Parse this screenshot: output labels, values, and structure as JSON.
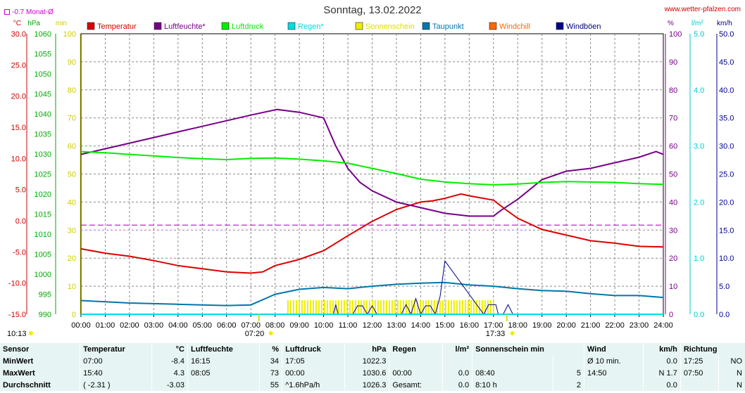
{
  "header": {
    "title": "Sonntag, 13.02.2022",
    "site": "www.wetter-pfalzen.com",
    "avg_label": "-0.7 Monat-Ø"
  },
  "colors": {
    "temperature": "#dd0000",
    "humidity": "#770088",
    "pressure": "#00ee00",
    "rain": "#00dddd",
    "sun": "#eeee00",
    "dewpoint": "#0077aa",
    "windchill": "#ff6600",
    "gust": "#000088"
  },
  "chart_data": {
    "type": "line",
    "title": "Sonntag, 13.02.2022",
    "x_unit": "hours",
    "x_ticks": [
      "00:00",
      "01:00",
      "02:00",
      "03:00",
      "04:00",
      "05:00",
      "06:00",
      "07:00",
      "08:00",
      "09:00",
      "10:00",
      "11:00",
      "12:00",
      "13:00",
      "14:00",
      "15:00",
      "16:00",
      "17:00",
      "18:00",
      "19:00",
      "20:00",
      "21:00",
      "22:00",
      "23:00",
      "24:00"
    ],
    "axes": {
      "temperature": {
        "unit": "°C",
        "range": [
          -15,
          30
        ],
        "ticks": [
          "30.0",
          "25.0",
          "20.0",
          "15.0",
          "10.0",
          "5.0",
          "0.0",
          "-5.0",
          "-10.0",
          "-15.0"
        ]
      },
      "pressure": {
        "unit": "hPa",
        "range": [
          990,
          1060
        ],
        "ticks": [
          "1060",
          "1055",
          "1050",
          "1045",
          "1040",
          "1035",
          "1030",
          "1025",
          "1020",
          "1015",
          "1010",
          "1005",
          "1000",
          "995",
          "990"
        ]
      },
      "sun_min": {
        "unit": "min",
        "range": [
          0,
          100
        ],
        "ticks": [
          "100",
          "90",
          "80",
          "70",
          "60",
          "50",
          "40",
          "30",
          "20",
          "10",
          "0"
        ]
      },
      "humidity": {
        "unit": "%",
        "range": [
          0,
          100
        ],
        "ticks": [
          "100",
          "90",
          "80",
          "70",
          "60",
          "50",
          "40",
          "30",
          "20",
          "10",
          "0"
        ]
      },
      "rain": {
        "unit": "l/m²",
        "range": [
          0,
          5
        ],
        "ticks": [
          "5.0",
          "4.0",
          "3.0",
          "2.0",
          "1.0",
          "0.0"
        ]
      },
      "wind": {
        "unit": "km/h",
        "range": [
          0,
          50
        ],
        "ticks": [
          "50.0",
          "45.0",
          "40.0",
          "35.0",
          "30.0",
          "25.0",
          "20.0",
          "15.0",
          "10.0",
          "5.0",
          "0.0"
        ]
      }
    },
    "monthly_avg_temp": -0.7,
    "sunrise": "07:20",
    "sunset": "17:33",
    "series": [
      {
        "name": "Temperatur",
        "axis": "temperature",
        "color": "#dd0000",
        "x": [
          0,
          1,
          2,
          3,
          4,
          5,
          6,
          7,
          7.5,
          8,
          9,
          10,
          11,
          12,
          13,
          14,
          14.5,
          15,
          15.66,
          16,
          17,
          17.5,
          18,
          19,
          20,
          21,
          22,
          23,
          24
        ],
        "y": [
          -4.5,
          -5.2,
          -5.7,
          -6.4,
          -7.2,
          -7.7,
          -8.2,
          -8.4,
          -8.2,
          -7.2,
          -6.2,
          -4.8,
          -2.4,
          -0.1,
          1.8,
          3.0,
          3.2,
          3.6,
          4.3,
          4.0,
          3.3,
          1.8,
          0.4,
          -1.4,
          -2.3,
          -3.2,
          -3.6,
          -4.1,
          -4.2
        ]
      },
      {
        "name": "Luftfeuchte*",
        "axis": "humidity",
        "color": "#770088",
        "x": [
          0,
          1,
          2,
          3,
          4,
          5,
          6,
          7,
          8.08,
          9,
          10,
          10.5,
          11,
          11.5,
          12,
          13,
          14,
          15,
          16,
          17,
          17.3,
          18,
          19,
          20,
          21,
          22,
          23,
          23.7,
          24
        ],
        "y": [
          57,
          59,
          61,
          63,
          65,
          67,
          69,
          71,
          73,
          72,
          70,
          60,
          52,
          47,
          44,
          40,
          38,
          36,
          35,
          35,
          37,
          41,
          48,
          51,
          52,
          54,
          56,
          58,
          57
        ]
      },
      {
        "name": "Luftdruck",
        "axis": "pressure",
        "color": "#00ee00",
        "x": [
          0,
          1,
          2,
          3,
          4,
          5,
          6,
          7,
          8,
          9,
          10,
          11,
          12,
          13,
          14,
          15,
          16,
          17,
          18,
          19,
          20,
          21,
          22,
          23,
          24
        ],
        "y": [
          1030.6,
          1030.3,
          1029.9,
          1029.5,
          1029.1,
          1028.8,
          1028.6,
          1028.9,
          1029.0,
          1028.7,
          1028.3,
          1027.7,
          1026.4,
          1025.1,
          1023.7,
          1023.0,
          1022.6,
          1022.3,
          1022.5,
          1022.9,
          1023.1,
          1023.0,
          1022.9,
          1022.6,
          1022.4
        ]
      },
      {
        "name": "Taupunkt",
        "axis": "temperature",
        "color": "#0077aa",
        "x": [
          0,
          1,
          2,
          3,
          4,
          5,
          6,
          7,
          8,
          9,
          10,
          11,
          12,
          13,
          14,
          15,
          16,
          17,
          18,
          19,
          20,
          21,
          22,
          23,
          24
        ],
        "y": [
          -12.8,
          -13.0,
          -13.2,
          -13.3,
          -13.4,
          -13.5,
          -13.6,
          -13.5,
          -11.8,
          -11.0,
          -10.7,
          -10.9,
          -10.5,
          -10.2,
          -10.0,
          -9.9,
          -10.3,
          -10.5,
          -10.9,
          -11.2,
          -11.3,
          -11.7,
          -12.0,
          -12.0,
          -12.3
        ]
      },
      {
        "name": "Sonnenschein",
        "axis": "sun_min",
        "color": "#eeee00",
        "x": [
          8.5,
          9,
          10,
          11,
          12,
          13,
          14,
          15,
          16,
          17
        ],
        "y": [
          5,
          5,
          5,
          5,
          5,
          5,
          5,
          5,
          5,
          5
        ]
      },
      {
        "name": "Windböen",
        "axis": "wind",
        "color": "#000088",
        "x": [
          0,
          10.4,
          10.5,
          10.6,
          11.2,
          11.4,
          11.6,
          11.8,
          12.0,
          12.2,
          13.2,
          13.4,
          13.6,
          13.8,
          14.0,
          14.2,
          14.4,
          14.6,
          14.8,
          15.0,
          16.6,
          16.8,
          17.1,
          17.2,
          17.4,
          17.6,
          17.8,
          18.0,
          24
        ],
        "y": [
          0,
          0,
          1.7,
          0,
          0,
          1.5,
          1.5,
          0,
          1.5,
          0,
          0,
          1.7,
          0,
          2.8,
          0,
          1.5,
          1.5,
          0,
          3.2,
          9.5,
          0,
          1.7,
          1.7,
          0,
          0,
          1.7,
          0,
          0,
          0
        ]
      },
      {
        "name": "Regen*",
        "axis": "rain",
        "color": "#00dddd",
        "x": [
          0,
          24
        ],
        "y": [
          0,
          0
        ]
      },
      {
        "name": "Windchill",
        "axis": "temperature",
        "color": "#ff6600",
        "x": [],
        "y": []
      }
    ],
    "legend": [
      {
        "label": "Temperatur",
        "color": "#dd0000"
      },
      {
        "label": "Luftfeuchte*",
        "color": "#770088"
      },
      {
        "label": "Luftdruck",
        "color": "#00ee00"
      },
      {
        "label": "Regen*",
        "color": "#00dddd"
      },
      {
        "label": "Sonnenschein",
        "color": "#eeee00"
      },
      {
        "label": "Taupunkt",
        "color": "#0077aa"
      },
      {
        "label": "Windchill",
        "color": "#ff6600"
      },
      {
        "label": "Windböen",
        "color": "#000088"
      }
    ]
  },
  "bottom": {
    "time_left": "10:13",
    "sunrise_label": "07:20",
    "sunset_label": "17:33"
  },
  "stats": {
    "headers": [
      "Sensor",
      "Temperatur",
      "°C",
      "Luftfeuchte",
      "%",
      "Luftdruck",
      "hPa",
      "Regen",
      "l/m²",
      "Sonnenschein min",
      "Wind",
      "km/h",
      "Richtung"
    ],
    "rows": [
      {
        "label": "MinWert",
        "t_time": "07:00",
        "t_val": "-8.4",
        "h_time": "16:15",
        "h_val": "34",
        "p_time": "17:05",
        "p_val": "1022.3",
        "r_time": "",
        "r_val": "",
        "s_time": "",
        "s_val": "",
        "w_time": "Ø 10 min.",
        "w_val": "0.0",
        "d_time": "17:25",
        "d_val": "NO"
      },
      {
        "label": "MaxWert",
        "t_time": "15:40",
        "t_val": "4.3",
        "h_time": "08:05",
        "h_val": "73",
        "p_time": "00:00",
        "p_val": "1030.6",
        "r_time": "00:00",
        "r_val": "0.0",
        "s_time": "08:40",
        "s_val": "5",
        "w_time": "14:50",
        "w_val": "N 1.7",
        "d_time": "07:50",
        "d_val": "N"
      },
      {
        "label": "Durchschnitt",
        "t_time": "( -2.31 )",
        "t_val": "-3.03",
        "h_time": "",
        "h_val": "55",
        "p_time": "^1.6hPa/h",
        "p_val": "1026.3",
        "r_time": "Gesamt:",
        "r_val": "0.0",
        "s_time": "8:10 h",
        "s_val": "2",
        "w_time": "",
        "w_val": "0.0",
        "d_time": "",
        "d_val": "N"
      }
    ]
  }
}
